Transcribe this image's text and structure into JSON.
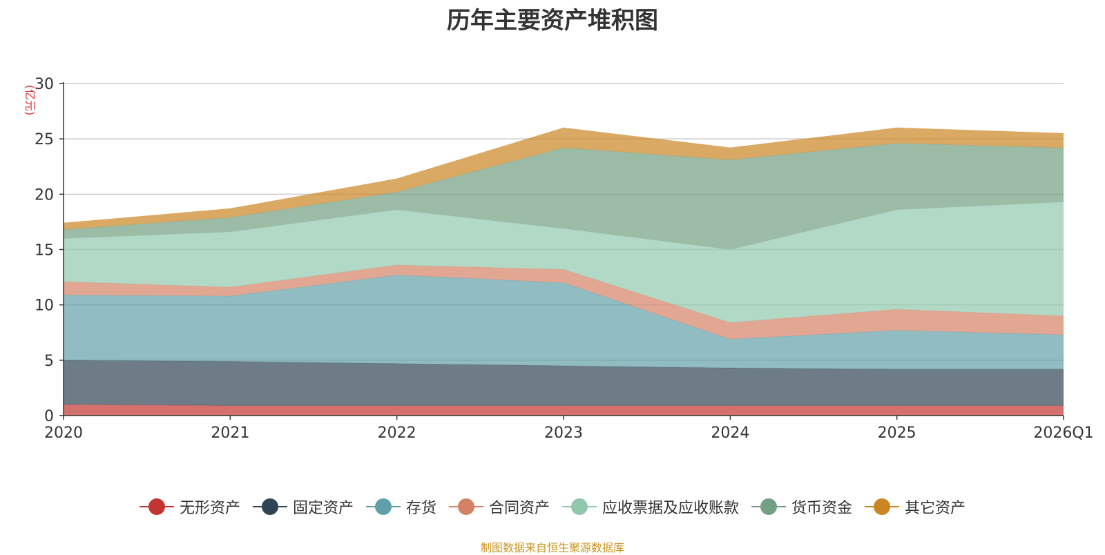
{
  "chart_data": {
    "type": "area",
    "stacked": true,
    "title": "历年主要资产堆积图",
    "ylabel": "(亿元)",
    "xlabel": "",
    "categories": [
      "2020",
      "2021",
      "2022",
      "2023",
      "2024",
      "2025",
      "2026Q1"
    ],
    "ylim": [
      0,
      30
    ],
    "yticks": [
      0,
      5,
      10,
      15,
      20,
      25,
      30
    ],
    "grid": true,
    "legend_position": "bottom",
    "series": [
      {
        "name": "无形资产",
        "color": "#c23531",
        "values": [
          1.0,
          0.9,
          0.9,
          0.9,
          0.9,
          0.9,
          0.9
        ]
      },
      {
        "name": "固定资产",
        "color": "#2f4554",
        "values": [
          4.0,
          4.0,
          3.8,
          3.6,
          3.4,
          3.3,
          3.3
        ]
      },
      {
        "name": "存货",
        "color": "#61a0a8",
        "values": [
          5.9,
          5.9,
          8.0,
          7.5,
          2.6,
          3.5,
          3.1
        ]
      },
      {
        "name": "合同资产",
        "color": "#d48265",
        "values": [
          1.2,
          0.8,
          0.9,
          1.2,
          1.5,
          1.9,
          1.7
        ]
      },
      {
        "name": "应收票据及应收账款",
        "color": "#91c7ae",
        "values": [
          3.9,
          5.0,
          5.0,
          3.7,
          6.6,
          9.0,
          10.3
        ]
      },
      {
        "name": "货币资金",
        "color": "#749f83",
        "values": [
          0.8,
          1.3,
          1.6,
          7.3,
          8.1,
          6.0,
          4.9
        ]
      },
      {
        "name": "其它资产",
        "color": "#ca8622",
        "values": [
          0.6,
          0.8,
          1.2,
          1.8,
          1.1,
          1.4,
          1.3
        ]
      }
    ]
  },
  "source_note": "制图数据来自恒生聚源数据库"
}
